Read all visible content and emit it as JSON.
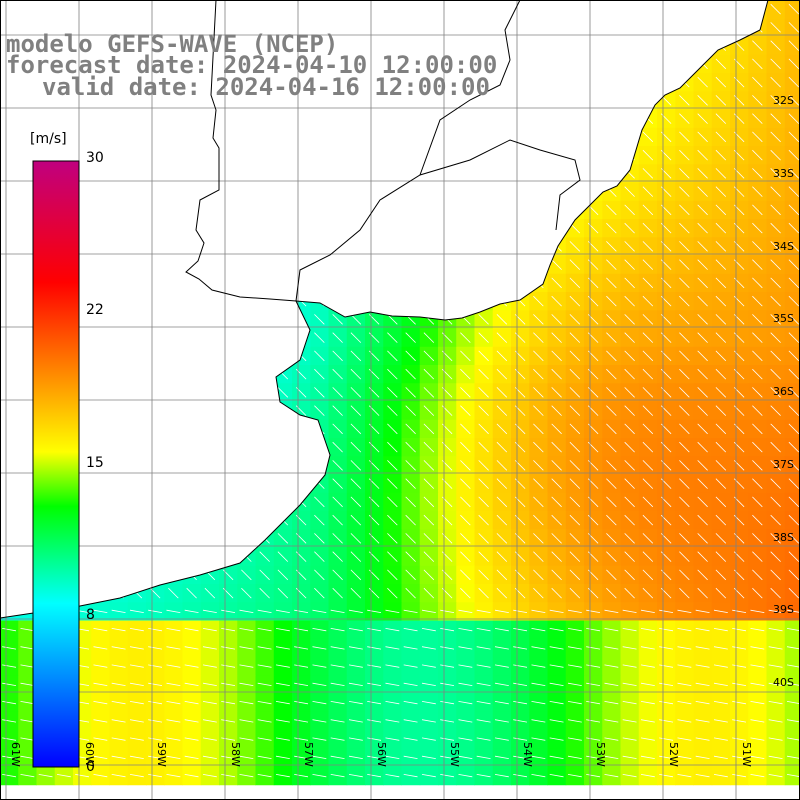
{
  "header": {
    "line1": "modelo GEFS-WAVE (NCEP)",
    "line2": "forecast date: 2024-04-10 12:00:00",
    "line3": "valid date: 2024-04-16 12:00:00"
  },
  "colorbar": {
    "unit": "[m/s]",
    "min": 0,
    "max": 30,
    "ticks": [
      "30",
      "22",
      "15",
      "8",
      "0"
    ],
    "colors": [
      "#0000ff",
      "#00ffff",
      "#00ff00",
      "#ffff00",
      "#ff0000",
      "#c0007f"
    ]
  },
  "axes": {
    "lat_labels": [
      "32S",
      "33S",
      "34S",
      "35S",
      "36S",
      "37S",
      "38S",
      "39S",
      "40S"
    ],
    "lon_labels": [
      "61W",
      "60W",
      "59W",
      "58W",
      "57W",
      "56W",
      "55W",
      "54W",
      "53W",
      "52W",
      "51W"
    ]
  },
  "map": {
    "land_color": "#ffffff",
    "coast_color": "#000000",
    "grid_color": "#808080",
    "arrow_color": "#ffffff"
  }
}
